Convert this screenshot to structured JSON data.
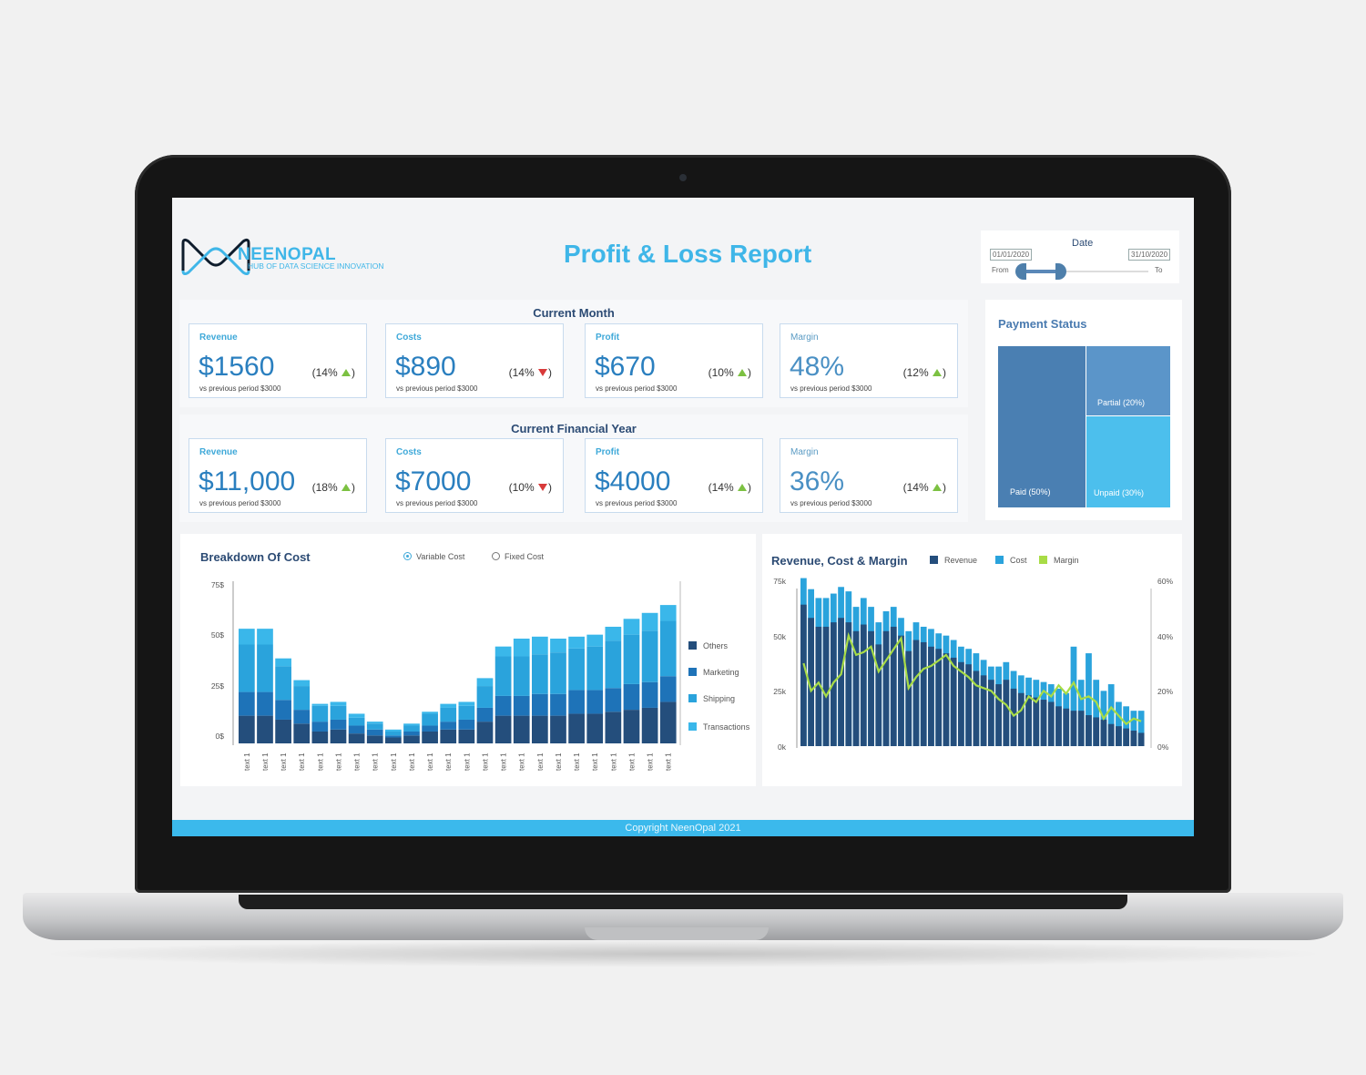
{
  "colors": {
    "accent": "#3fb6e8",
    "navy": "#2c4b74",
    "dark_blue": "#244e7c",
    "mid_blue": "#1e73b8",
    "light_blue": "#2aa3dc",
    "pale_blue": "#3ab7ea",
    "green": "#a8dc46"
  },
  "header": {
    "brand": "NEENOPAL",
    "tagline": "HUB OF DATA SCIENCE INNOVATION",
    "title": "Profit & Loss Report"
  },
  "date_filter": {
    "title": "Date",
    "from_date": "01/01/2020",
    "to_date": "31/10/2020",
    "from_label": "From",
    "to_label": "To"
  },
  "current_month": {
    "title": "Current Month",
    "cards": [
      {
        "label": "Revenue",
        "value": "$1560",
        "change": "(14%",
        "trend": "up",
        "sub": "vs previous period $3000"
      },
      {
        "label": "Costs",
        "value": "$890",
        "change": "(14%",
        "trend": "down",
        "sub": "vs previous period $3000"
      },
      {
        "label": "Profit",
        "value": "$670",
        "change": "(10%",
        "trend": "up",
        "sub": "vs previous period $3000"
      },
      {
        "label": "Margin",
        "value": "48%",
        "change": "(12%",
        "trend": "up",
        "sub": "vs previous period $3000"
      }
    ]
  },
  "current_year": {
    "title": "Current Financial Year",
    "cards": [
      {
        "label": "Revenue",
        "value": "$11,000",
        "change": "(18%",
        "trend": "up",
        "sub": "vs previous period $3000"
      },
      {
        "label": "Costs",
        "value": "$7000",
        "change": "(10%",
        "trend": "down",
        "sub": "vs previous period $3000"
      },
      {
        "label": "Profit",
        "value": "$4000",
        "change": "(14%",
        "trend": "up",
        "sub": "vs previous period $3000"
      },
      {
        "label": "Margin",
        "value": "36%",
        "change": "(14%",
        "trend": "up",
        "sub": "vs previous period $3000"
      }
    ]
  },
  "payment_status": {
    "title": "Payment Status",
    "segments": [
      {
        "label": "Paid (50%)",
        "value": 50,
        "color": "#4a7fb2"
      },
      {
        "label": "Partial (20%)",
        "value": 20,
        "color": "#5b95c9"
      },
      {
        "label": "Unpaid (30%)",
        "value": 30,
        "color": "#4cbfed"
      }
    ]
  },
  "breakdown": {
    "title": "Breakdown Of Cost",
    "options": [
      "Variable Cost",
      "Fixed Cost"
    ],
    "selected": "Variable Cost"
  },
  "revenue_chart": {
    "title": "Revenue, Cost & Margin"
  },
  "footer": {
    "text": "Copyright NeenOpal 2021"
  },
  "chart_data": [
    {
      "type": "bar",
      "stacked": true,
      "title": "Breakdown Of Cost",
      "yticks": [
        "0$",
        "25$",
        "50$",
        "75$"
      ],
      "ylim": [
        0,
        75
      ],
      "categories": [
        "text 1",
        "text 1",
        "text 1",
        "text 1",
        "text 1",
        "text 1",
        "text 1",
        "text 1",
        "text 1",
        "text 1",
        "text 1",
        "text 1",
        "text 1",
        "text 1",
        "text 1",
        "text 1",
        "text 1",
        "text 1",
        "text 1",
        "text 1",
        "text 1",
        "text 1",
        "text 1",
        "text 1"
      ],
      "legend_position": "right",
      "series": [
        {
          "name": "Others",
          "color": "#244e7c",
          "values": [
            14,
            14,
            12,
            10,
            6,
            7,
            5,
            4,
            3,
            4,
            6,
            7,
            7,
            11,
            14,
            14,
            14,
            14,
            15,
            15,
            16,
            17,
            18,
            21
          ]
        },
        {
          "name": "Marketing",
          "color": "#1e73b8",
          "values": [
            12,
            12,
            10,
            7,
            5,
            5,
            4,
            3,
            1,
            2,
            3,
            4,
            5,
            7,
            10,
            10,
            11,
            11,
            12,
            12,
            12,
            13,
            13,
            13
          ]
        },
        {
          "name": "Shipping",
          "color": "#2aa3dc",
          "values": [
            24,
            24,
            17,
            12,
            8,
            7,
            4,
            3,
            2,
            3,
            6,
            7,
            7,
            11,
            20,
            20,
            20,
            21,
            21,
            22,
            24,
            25,
            26,
            28
          ]
        },
        {
          "name": "Transactions",
          "color": "#3ab7ea",
          "values": [
            8,
            8,
            4,
            3,
            1,
            2,
            2,
            1,
            1,
            1,
            1,
            2,
            2,
            4,
            5,
            9,
            9,
            7,
            6,
            6,
            7,
            8,
            9,
            8
          ]
        }
      ]
    },
    {
      "type": "bar",
      "title": "Revenue, Cost & Margin",
      "yticks_left": [
        "0k",
        "25k",
        "50k",
        "75k"
      ],
      "ylim_left": [
        0,
        75
      ],
      "yticks_right": [
        "0%",
        "20%",
        "40%",
        "60%"
      ],
      "ylim_right": [
        0,
        60
      ],
      "legend_position": "top",
      "series": [
        {
          "name": "Revenue",
          "type": "bar",
          "color": "#244e7c",
          "values": [
            64,
            58,
            54,
            54,
            56,
            58,
            56,
            52,
            55,
            52,
            46,
            52,
            54,
            50,
            43,
            48,
            47,
            45,
            44,
            42,
            40,
            38,
            37,
            34,
            32,
            30,
            28,
            30,
            26,
            24,
            23,
            22,
            21,
            20,
            18,
            17,
            16,
            16,
            14,
            13,
            12,
            10,
            9,
            8,
            7,
            6
          ]
        },
        {
          "name": "Cost",
          "type": "bar",
          "color": "#2aa3dc",
          "values": [
            76,
            71,
            67,
            67,
            69,
            72,
            70,
            63,
            67,
            63,
            56,
            61,
            63,
            58,
            52,
            56,
            54,
            53,
            51,
            50,
            48,
            45,
            44,
            42,
            39,
            36,
            36,
            38,
            34,
            32,
            31,
            30,
            29,
            28,
            26,
            24,
            45,
            30,
            42,
            30,
            25,
            28,
            20,
            18,
            16,
            16
          ]
        },
        {
          "name": "Margin",
          "type": "line",
          "color": "#a8dc46",
          "values": [
            30,
            20,
            23,
            18,
            23,
            26,
            40,
            33,
            34,
            36,
            27,
            31,
            35,
            39,
            21,
            25,
            28,
            29,
            31,
            33,
            29,
            27,
            25,
            22,
            21,
            20,
            17,
            15,
            11,
            13,
            18,
            16,
            20,
            18,
            22,
            19,
            23,
            17,
            18,
            16,
            10,
            14,
            11,
            8,
            10,
            9
          ]
        }
      ]
    }
  ]
}
